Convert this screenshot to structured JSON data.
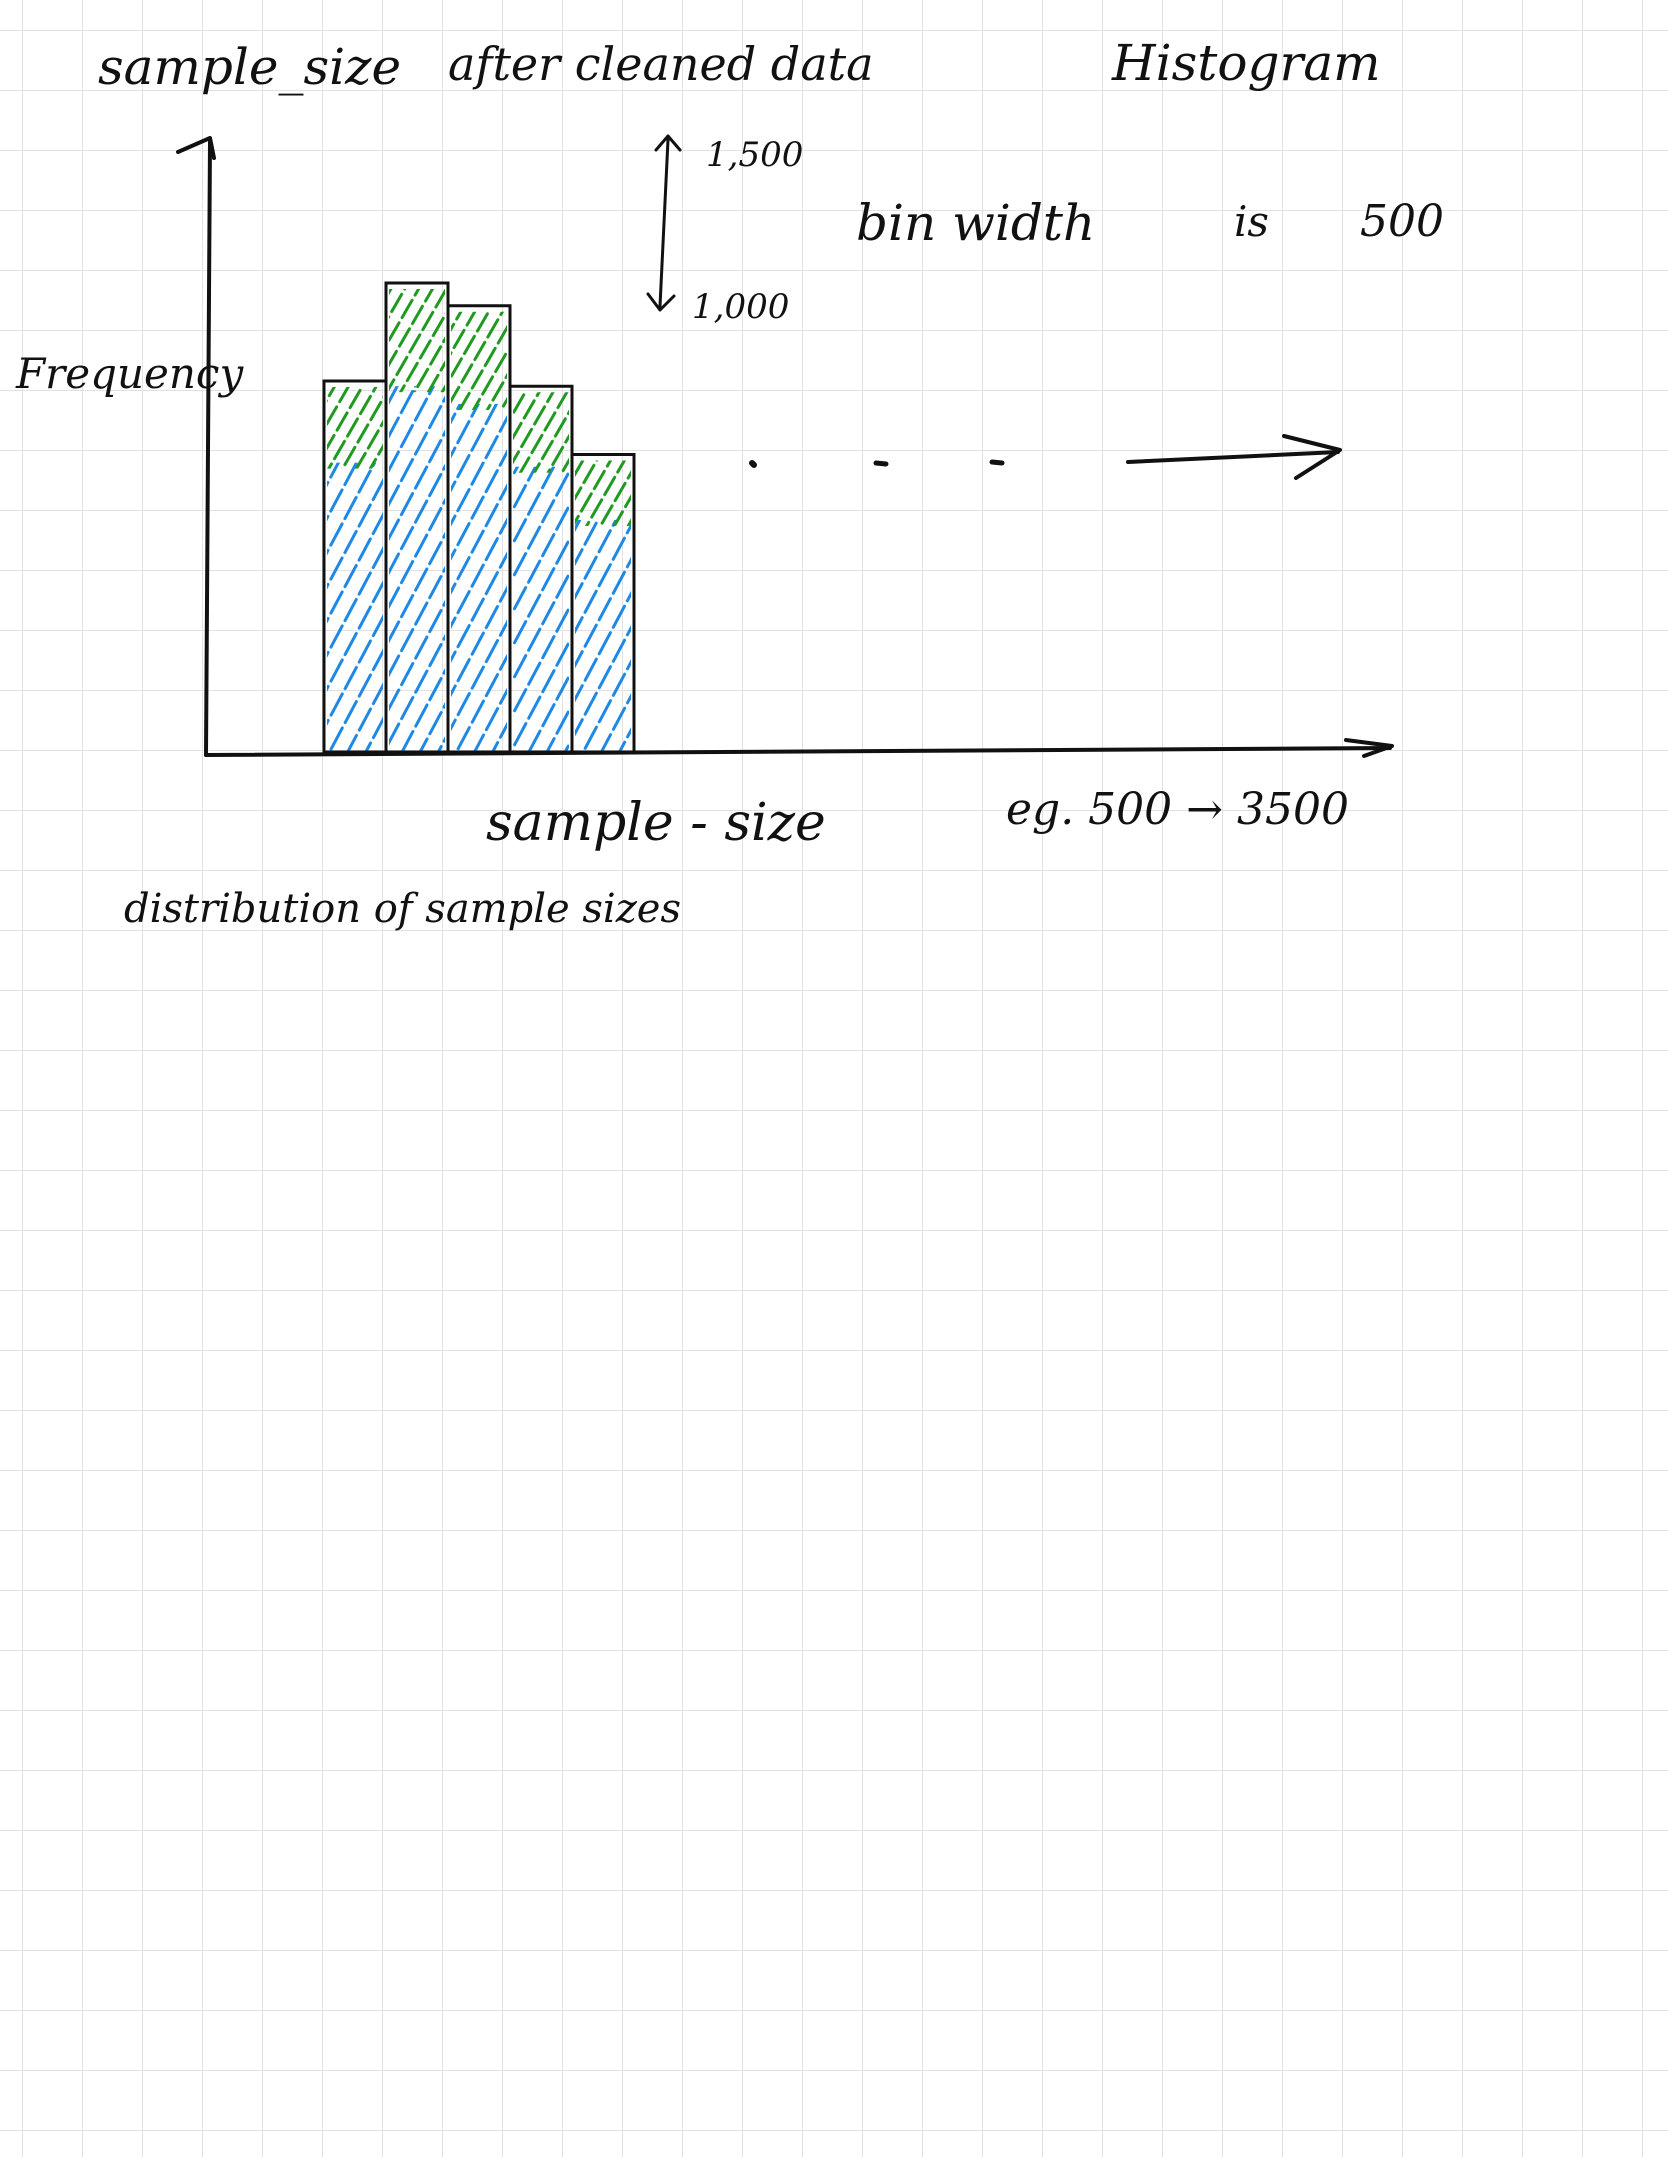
{
  "notes": {
    "topic": "sample_size",
    "subtitle": "after cleaned data",
    "chart_kind": "Histogram",
    "bin_note": {
      "label": "bin width",
      "connector": "is",
      "value": "500"
    },
    "scale_note": {
      "upper": "1,500",
      "lower": "1,000"
    },
    "x_axis_note": {
      "label": "sample - size",
      "range": "eg. 500 → 3500"
    },
    "caption": "distribution of sample sizes",
    "ylabel": "Frequency"
  },
  "colors": {
    "ink": "#111111",
    "upper_hatch": "#1f9a1f",
    "lower_hatch": "#1e88e5",
    "grid": "#e2e2e2"
  },
  "chart_data": {
    "type": "bar",
    "title": "Histogram",
    "xlabel": "sample - size",
    "ylabel": "Frequency",
    "bin_width": 500,
    "x_range": [
      500,
      3500
    ],
    "values": [
      1060,
      1340,
      1275,
      1045,
      850
    ],
    "continuation": "..."
  }
}
